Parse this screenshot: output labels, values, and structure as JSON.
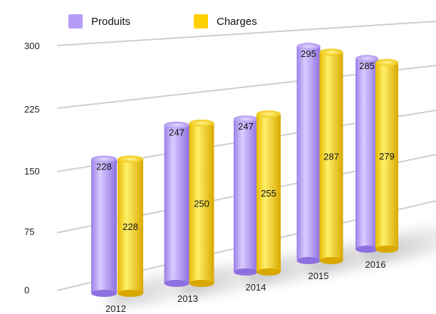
{
  "chart_data": {
    "type": "bar",
    "title": "",
    "xlabel": "",
    "ylabel": "",
    "categories": [
      "2012",
      "2013",
      "2014",
      "2015",
      "2016"
    ],
    "series": [
      {
        "name": "Produits",
        "values": [
          228,
          247,
          247,
          295,
          285
        ],
        "color": "#B69CF7"
      },
      {
        "name": "Charges",
        "values": [
          228,
          250,
          255,
          287,
          279
        ],
        "color": "#FFD000"
      }
    ],
    "y_ticks": [
      "0",
      "75",
      "150",
      "225",
      "300"
    ],
    "ylim": [
      0,
      300
    ],
    "grid": true,
    "legend_position": "top-left",
    "style": "3d-cylinders"
  }
}
